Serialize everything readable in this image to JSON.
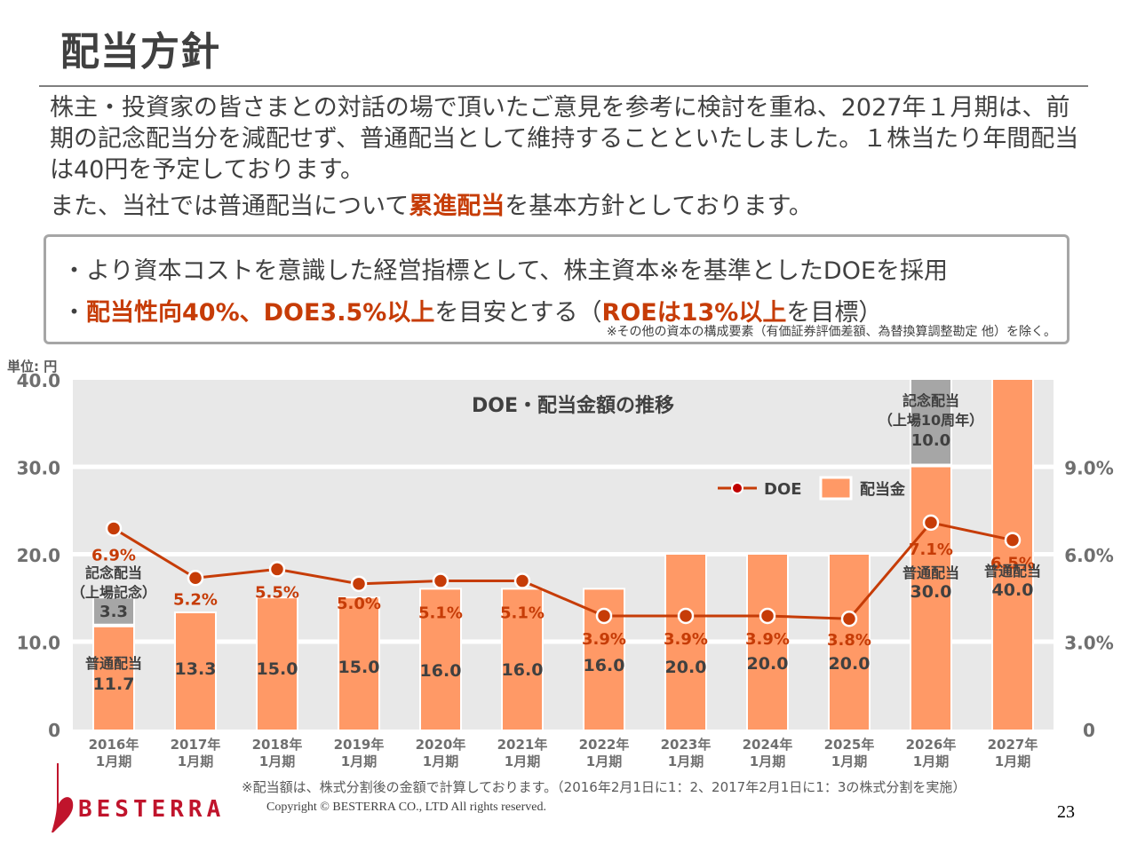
{
  "page": {
    "title": "配当方針",
    "intro_line1": "株主・投資家の皆さまとの対話の場で頂いたご意見を参考に検討を重ね、2027年１月期は、前期の記念配当分を減配せず、普通配当として維持することといたしました。１株当たり年間配当は40円を予定しております。",
    "intro_line2_pre": "また、当社では普通配当について",
    "intro_line2_highlight": "累進配当",
    "intro_line2_post": "を基本方針としております。",
    "policy": {
      "bullet1": "・より資本コストを意識した経営指標として、株主資本※を基準としたDOEを採用",
      "bullet2_prefix": "・",
      "bullet2_highlight1": "配当性向40%、DOE3.5%以上",
      "bullet2_mid": "を目安とする（",
      "bullet2_highlight2": "ROEは13%以上",
      "bullet2_suffix": "を目標）",
      "note": "※その他の資本の構成要素（有価証券評価差額、為替換算調整勘定 他）を除く。"
    },
    "unit_label": "単位: 円",
    "footnote": "※配当額は、株式分割後の金額で計算しております。（2016年2月1日に1：2、2017年2月1日に1：3の株式分割を実施）",
    "copyright": "Copyright © BESTERRA CO., LTD All rights reserved.",
    "page_number": "23",
    "logo_text": "BESTERRA"
  },
  "colors": {
    "accent_red": "#c63c07",
    "bar_orange": "#ff9966",
    "bar_gray": "#a6a6a6",
    "plot_bg": "#e8e8e8",
    "doe_line": "#c63c07",
    "logo_red": "#c0142c",
    "text_dark": "#404040",
    "axis_gray": "#6f6f6f"
  },
  "chart_data": {
    "type": "bar",
    "title": "DOE・配当金額の推移",
    "categories": [
      "2016年\n1月期",
      "2017年\n1月期",
      "2018年\n1月期",
      "2019年\n1月期",
      "2020年\n1月期",
      "2021年\n1月期",
      "2022年\n1月期",
      "2023年\n1月期",
      "2024年\n1月期",
      "2025年\n1月期",
      "2026年\n1月期",
      "2027年\n1月期"
    ],
    "series": [
      {
        "name": "普通配当",
        "kind": "bar",
        "values": [
          11.7,
          13.3,
          15.0,
          15.0,
          16.0,
          16.0,
          16.0,
          20.0,
          20.0,
          20.0,
          30.0,
          40.0
        ],
        "labels": [
          "11.7",
          "13.3",
          "15.0",
          "15.0",
          "16.0",
          "16.0",
          "16.0",
          "20.0",
          "20.0",
          "20.0",
          "30.0",
          "40.0"
        ]
      },
      {
        "name": "記念配当",
        "kind": "bar-stacked",
        "values": [
          3.3,
          0,
          0,
          0,
          0,
          0,
          0,
          0,
          0,
          0,
          10.0,
          0
        ],
        "labels": [
          "3.3",
          "",
          "",
          "",
          "",
          "",
          "",
          "",
          "",
          "",
          "10.0",
          ""
        ]
      },
      {
        "name": "DOE",
        "kind": "line",
        "axis": "right",
        "values": [
          6.9,
          5.2,
          5.5,
          5.0,
          5.1,
          5.1,
          3.9,
          3.9,
          3.9,
          3.8,
          7.1,
          6.5
        ],
        "labels": [
          "6.9%",
          "5.2%",
          "5.5%",
          "5.0%",
          "5.1%",
          "5.1%",
          "3.9%",
          "3.9%",
          "3.9%",
          "3.8%",
          "7.1%",
          "6.5%"
        ]
      }
    ],
    "annotations": {
      "commemorative_2016": "記念配当\n（上場記念）",
      "regular_2016": "普通配当",
      "commemorative_2026": "記念配当\n（上場10周年）",
      "regular_2026": "普通配当",
      "regular_2027": "普通配当"
    },
    "legend": [
      {
        "name": "DOE",
        "marker": "line-dot"
      },
      {
        "name": "配当金",
        "marker": "square"
      }
    ],
    "legend_position": "top-right",
    "y_left": {
      "ticks": [
        "0",
        "10.0",
        "20.0",
        "30.0",
        "40.0"
      ],
      "range": [
        0,
        40
      ],
      "unit": "円"
    },
    "y_right": {
      "ticks": [
        "0",
        "3.0%",
        "6.0%",
        "9.0%"
      ],
      "range": [
        0,
        12
      ],
      "unit": "%"
    },
    "grid": true
  }
}
